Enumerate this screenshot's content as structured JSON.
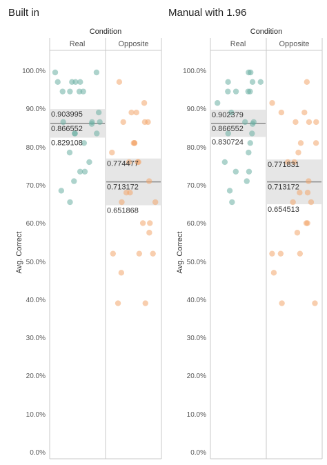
{
  "chart_data": [
    {
      "type": "scatter",
      "title": "Built in",
      "column_header": "Condition",
      "categories": [
        "Real",
        "Opposite"
      ],
      "ylabel": "Avg. Correct",
      "ylim": [
        0,
        1.0
      ],
      "yticks": [
        "0.0%",
        "10.0%",
        "20.0%",
        "30.0%",
        "40.0%",
        "50.0%",
        "60.0%",
        "70.0%",
        "80.0%",
        "90.0%",
        "100.0%"
      ],
      "colors": {
        "Real": "#6aafa3",
        "Opposite": "#f2a66b"
      },
      "series": [
        {
          "name": "Real",
          "band": {
            "lower": 0.829108,
            "mean": 0.866552,
            "upper": 0.903995
          },
          "labels": [
            "0.903995",
            "0.866552",
            "0.829108"
          ],
          "values": [
            1.0,
            1.0,
            0.975,
            0.975,
            0.975,
            0.975,
            0.95,
            0.95,
            0.95,
            0.95,
            0.895,
            0.87,
            0.87,
            0.87,
            0.865,
            0.84,
            0.84,
            0.84,
            0.815,
            0.79,
            0.765,
            0.74,
            0.74,
            0.715,
            0.69,
            0.66
          ]
        },
        {
          "name": "Opposite",
          "band": {
            "lower": 0.651868,
            "mean": 0.713172,
            "upper": 0.774477
          },
          "labels": [
            "0.774477",
            "0.713172",
            "0.651868"
          ],
          "values": [
            0.975,
            0.92,
            0.895,
            0.895,
            0.87,
            0.87,
            0.87,
            0.815,
            0.815,
            0.815,
            0.79,
            0.765,
            0.765,
            0.765,
            0.715,
            0.685,
            0.685,
            0.66,
            0.66,
            0.605,
            0.605,
            0.58,
            0.525,
            0.525,
            0.525,
            0.475,
            0.395,
            0.395
          ]
        }
      ]
    },
    {
      "type": "scatter",
      "title": "Manual with 1.96",
      "column_header": "Condition",
      "categories": [
        "Real",
        "Opposite"
      ],
      "ylabel": "Avg. Correct",
      "ylim": [
        0,
        1.0
      ],
      "yticks": [
        "0.0%",
        "10.0%",
        "20.0%",
        "30.0%",
        "40.0%",
        "50.0%",
        "60.0%",
        "70.0%",
        "80.0%",
        "90.0%",
        "100.0%"
      ],
      "colors": {
        "Real": "#6aafa3",
        "Opposite": "#f2a66b"
      },
      "series": [
        {
          "name": "Real",
          "band": {
            "lower": 0.830724,
            "mean": 0.866552,
            "upper": 0.902379
          },
          "labels": [
            "0.902379",
            "0.866552",
            "0.830724"
          ],
          "values": [
            1.0,
            1.0,
            0.975,
            0.975,
            0.975,
            0.95,
            0.95,
            0.95,
            0.95,
            0.92,
            0.895,
            0.87,
            0.87,
            0.865,
            0.84,
            0.84,
            0.815,
            0.79,
            0.765,
            0.74,
            0.74,
            0.715,
            0.69,
            0.66
          ]
        },
        {
          "name": "Opposite",
          "band": {
            "lower": 0.654513,
            "mean": 0.713172,
            "upper": 0.771831
          },
          "labels": [
            "0.771831",
            "0.713172",
            "0.654513"
          ],
          "values": [
            0.975,
            0.92,
            0.895,
            0.895,
            0.87,
            0.87,
            0.87,
            0.815,
            0.815,
            0.79,
            0.765,
            0.765,
            0.715,
            0.685,
            0.685,
            0.66,
            0.66,
            0.605,
            0.605,
            0.58,
            0.525,
            0.525,
            0.525,
            0.475,
            0.395,
            0.395
          ]
        }
      ]
    }
  ]
}
